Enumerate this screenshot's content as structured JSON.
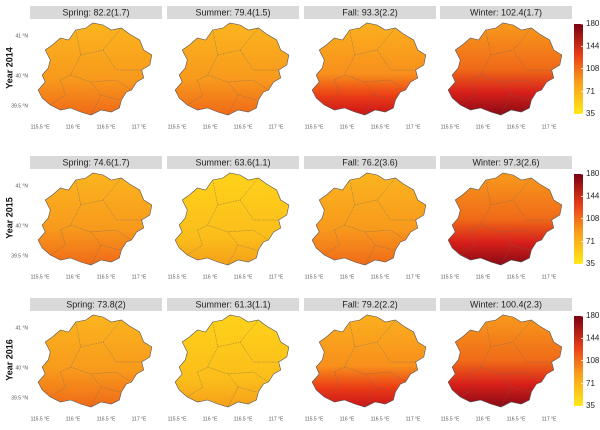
{
  "rows": [
    {
      "label": "Year 2014",
      "panels": [
        "Spring: 82.2(1.7)",
        "Summer: 79.4(1.5)",
        "Fall: 93.3(2.2)",
        "Winter: 102.4(1.7)"
      ]
    },
    {
      "label": "Year 2015",
      "panels": [
        "Spring: 74.6(1.7)",
        "Summer: 63.6(1.1)",
        "Fall: 76.2(3.6)",
        "Winter: 97.3(2.6)"
      ]
    },
    {
      "label": "Year 2016",
      "panels": [
        "Spring: 73.8(2)",
        "Summer: 61.3(1.1)",
        "Fall: 79.2(2.2)",
        "Winter: 100.4(2.3)"
      ]
    }
  ],
  "lat_labels": [
    "41 °N",
    "40 °N",
    "39.5 °N"
  ],
  "lon_labels": [
    "115.5 °E",
    "116 °E",
    "116.5 °E",
    "117 °E"
  ],
  "colorbar": {
    "lim": [
      35,
      180
    ],
    "ticks": [
      35,
      71,
      108,
      144,
      180
    ]
  }
}
